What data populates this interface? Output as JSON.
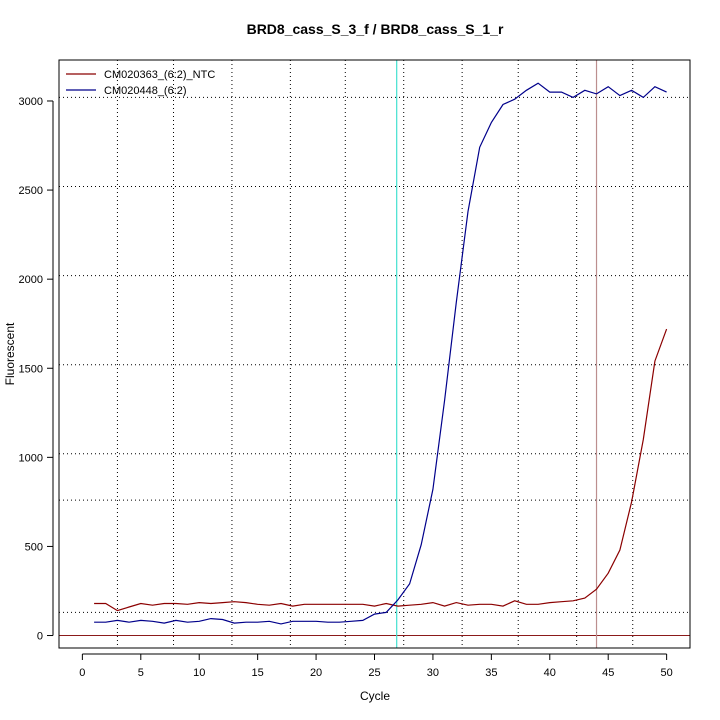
{
  "chart_data": {
    "type": "line",
    "title": "BRD8_cass_S_3_f / BRD8_cass_S_1_r",
    "xlabel": "Cycle",
    "ylabel": "Fluorescent",
    "xlim": [
      -2,
      52
    ],
    "ylim": [
      -70,
      3230
    ],
    "x_ticks": [
      0,
      5,
      10,
      15,
      20,
      25,
      30,
      35,
      40,
      45,
      50
    ],
    "y_ticks": [
      0,
      500,
      1000,
      1500,
      2000,
      2500,
      3000
    ],
    "grid": true,
    "legend_position": "top-left",
    "x": [
      1,
      2,
      3,
      4,
      5,
      6,
      7,
      8,
      9,
      10,
      11,
      12,
      13,
      14,
      15,
      16,
      17,
      18,
      19,
      20,
      21,
      22,
      23,
      24,
      25,
      26,
      27,
      28,
      29,
      30,
      31,
      32,
      33,
      34,
      35,
      36,
      37,
      38,
      39,
      40,
      41,
      42,
      43,
      44,
      45,
      46,
      47,
      48,
      49,
      50
    ],
    "series": [
      {
        "name": "CM020363_(6:2)_NTC",
        "color": "#8b0000",
        "values": [
          180,
          180,
          140,
          160,
          180,
          170,
          180,
          180,
          175,
          185,
          180,
          185,
          190,
          185,
          175,
          170,
          180,
          165,
          175,
          175,
          175,
          175,
          175,
          175,
          165,
          180,
          165,
          170,
          175,
          185,
          165,
          185,
          170,
          175,
          175,
          165,
          195,
          175,
          175,
          185,
          190,
          195,
          210,
          260,
          350,
          480,
          750,
          1100,
          1540,
          1720
        ]
      },
      {
        "name": "CM020448_(6:2)",
        "color": "#00008b",
        "values": [
          75,
          75,
          85,
          75,
          85,
          80,
          70,
          85,
          75,
          80,
          95,
          90,
          70,
          75,
          75,
          80,
          65,
          80,
          80,
          80,
          75,
          75,
          80,
          85,
          120,
          130,
          200,
          290,
          510,
          820,
          1320,
          1870,
          2380,
          2740,
          2880,
          2980,
          3010,
          3060,
          3100,
          3050,
          3050,
          3020,
          3060,
          3040,
          3080,
          3030,
          3060,
          3020,
          3080,
          3050
        ]
      }
    ],
    "threshold_y": 0,
    "vertical_lines": [
      {
        "x": 26.9,
        "color": "#40e0d0"
      },
      {
        "x": 44,
        "color": "#bc8f8f"
      }
    ],
    "dotted_vertical_x": [
      3,
      7.8,
      12.8,
      17.8,
      22.5,
      27.5,
      32.5,
      37.3,
      42.3,
      47.1
    ],
    "dotted_horizontal_y": [
      130,
      760,
      1020,
      1520,
      2020,
      2520,
      3020
    ]
  }
}
